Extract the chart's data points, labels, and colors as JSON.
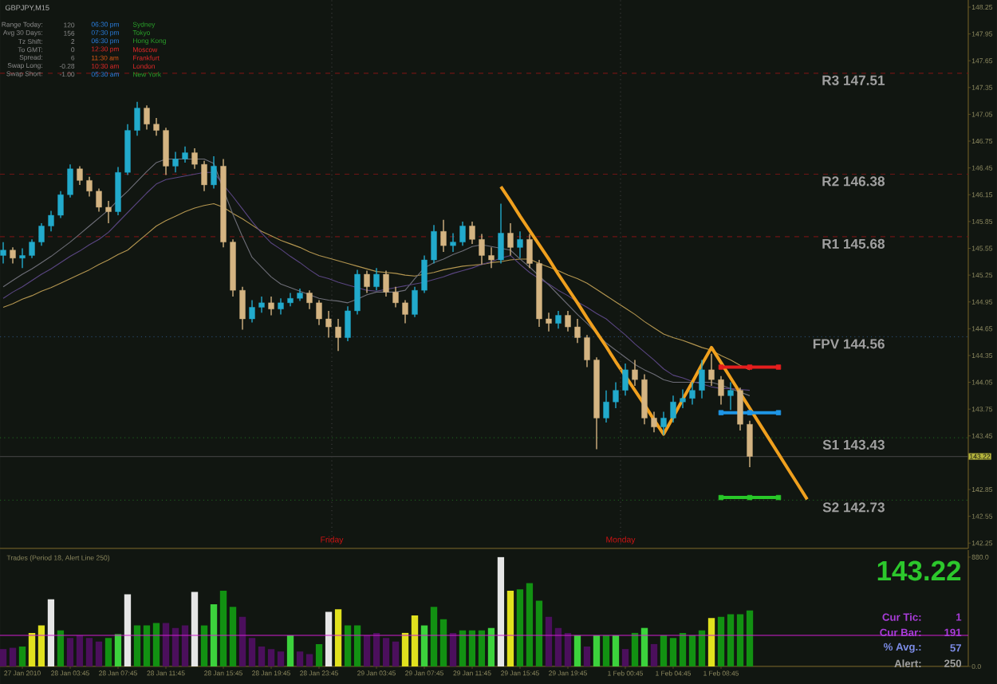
{
  "chart_data": [
    {
      "type": "candlestick",
      "title": "GBPJPY,M15",
      "annotations": [
        "Range Today:",
        "120",
        "06:30 pm",
        "Sydney",
        "Avg 30 Days:",
        "156",
        "07:30 pm",
        "Tokyo",
        "Tz Shift:",
        "2",
        "06:30 pm",
        "Hong Kong",
        "To GMT:",
        "0",
        "12:30 pm",
        "Moscow",
        "Spread:",
        "6",
        "11:30 am",
        "Frankfurt",
        "Swap Long:",
        "-0.28",
        "10:30 am",
        "London",
        "Swap Short:",
        "-1.00",
        "05:30 am",
        "New York",
        "Friday",
        "Monday"
      ],
      "categories": [
        null,
        null,
        null,
        null,
        null,
        null,
        null,
        null,
        null,
        null,
        null,
        null,
        null,
        null,
        null,
        null,
        null,
        null,
        null,
        null,
        null,
        null,
        null,
        null,
        null,
        null,
        null,
        null,
        null,
        null,
        null,
        null,
        null,
        null,
        null,
        null,
        null,
        null,
        null,
        null,
        null,
        null,
        null,
        null,
        null,
        null,
        null,
        null,
        null,
        null,
        null,
        null,
        null,
        null,
        null,
        null,
        null,
        null,
        null,
        null,
        null,
        null,
        null,
        null,
        null,
        null,
        null,
        null,
        null,
        null,
        null,
        null,
        null,
        null,
        null,
        null,
        null,
        null,
        null,
        null,
        null,
        null,
        null,
        null,
        null,
        null,
        null,
        null,
        null,
        null,
        null,
        null,
        null,
        null,
        null,
        null,
        null,
        null,
        null,
        null,
        null
      ],
      "ohlc": [
        [
          145.47,
          145.62,
          145.38,
          145.53
        ],
        [
          145.53,
          145.56,
          145.38,
          145.44
        ],
        [
          145.44,
          145.55,
          145.33,
          145.47
        ],
        [
          145.47,
          145.65,
          145.44,
          145.62
        ],
        [
          145.62,
          145.83,
          145.58,
          145.8
        ],
        [
          145.8,
          145.97,
          145.74,
          145.92
        ],
        [
          145.92,
          146.19,
          145.89,
          146.15
        ],
        [
          146.15,
          146.49,
          146.12,
          146.44
        ],
        [
          146.44,
          146.47,
          146.26,
          146.31
        ],
        [
          146.31,
          146.35,
          146.13,
          146.19
        ],
        [
          146.19,
          146.22,
          145.96,
          146.01
        ],
        [
          146.01,
          146.08,
          145.83,
          145.96
        ],
        [
          145.96,
          146.46,
          145.92,
          146.4
        ],
        [
          146.4,
          146.94,
          146.37,
          146.87
        ],
        [
          146.87,
          147.19,
          146.81,
          147.12
        ],
        [
          147.12,
          147.15,
          146.88,
          146.94
        ],
        [
          146.94,
          147.01,
          146.81,
          146.87
        ],
        [
          146.87,
          146.9,
          146.37,
          146.47
        ],
        [
          146.47,
          146.63,
          146.4,
          146.55
        ],
        [
          146.55,
          146.69,
          146.51,
          146.62
        ],
        [
          146.62,
          146.67,
          146.44,
          146.49
        ],
        [
          146.49,
          146.53,
          146.19,
          146.26
        ],
        [
          146.26,
          146.58,
          146.22,
          146.47
        ],
        [
          146.47,
          146.55,
          145.56,
          145.62
        ],
        [
          145.62,
          145.65,
          145.01,
          145.08
        ],
        [
          145.08,
          145.12,
          144.64,
          144.76
        ],
        [
          144.76,
          144.97,
          144.72,
          144.89
        ],
        [
          144.89,
          145.01,
          144.83,
          144.94
        ],
        [
          144.94,
          145.01,
          144.8,
          144.87
        ],
        [
          144.87,
          144.99,
          144.81,
          144.94
        ],
        [
          144.94,
          145.05,
          144.9,
          144.99
        ],
        [
          144.99,
          145.1,
          144.96,
          145.05
        ],
        [
          145.05,
          145.08,
          144.87,
          144.94
        ],
        [
          144.94,
          144.97,
          144.69,
          144.76
        ],
        [
          144.76,
          144.85,
          144.55,
          144.67
        ],
        [
          144.67,
          144.76,
          144.4,
          144.55
        ],
        [
          144.55,
          144.9,
          144.51,
          144.85
        ],
        [
          144.85,
          145.31,
          144.81,
          145.26
        ],
        [
          145.26,
          145.3,
          145.05,
          145.12
        ],
        [
          145.12,
          145.33,
          145.08,
          145.26
        ],
        [
          145.26,
          145.3,
          145.01,
          145.06
        ],
        [
          145.06,
          145.12,
          144.89,
          144.94
        ],
        [
          144.94,
          144.97,
          144.71,
          144.81
        ],
        [
          144.81,
          145.12,
          144.78,
          145.08
        ],
        [
          145.08,
          145.47,
          145.05,
          145.42
        ],
        [
          145.42,
          145.81,
          145.38,
          145.74
        ],
        [
          145.74,
          145.87,
          145.51,
          145.58
        ],
        [
          145.58,
          145.72,
          145.51,
          145.62
        ],
        [
          145.62,
          145.85,
          145.58,
          145.8
        ],
        [
          145.8,
          145.85,
          145.6,
          145.65
        ],
        [
          145.65,
          145.71,
          145.37,
          145.47
        ],
        [
          145.47,
          145.56,
          145.33,
          145.42
        ],
        [
          145.42,
          146.05,
          145.38,
          145.72
        ],
        [
          145.72,
          145.83,
          145.47,
          145.56
        ],
        [
          145.56,
          145.74,
          145.44,
          145.65
        ],
        [
          145.65,
          145.71,
          145.33,
          145.38
        ],
        [
          145.38,
          145.42,
          144.67,
          144.76
        ],
        [
          144.76,
          144.83,
          144.62,
          144.71
        ],
        [
          144.71,
          144.85,
          144.65,
          144.8
        ],
        [
          144.8,
          144.85,
          144.62,
          144.67
        ],
        [
          144.67,
          144.76,
          144.49,
          144.55
        ],
        [
          144.55,
          144.58,
          144.22,
          144.3
        ],
        [
          144.3,
          144.33,
          143.3,
          143.65
        ],
        [
          143.65,
          143.96,
          143.6,
          143.83
        ],
        [
          143.83,
          144.05,
          143.76,
          143.96
        ],
        [
          143.96,
          144.26,
          143.9,
          144.19
        ],
        [
          144.19,
          144.3,
          144.01,
          144.08
        ],
        [
          144.08,
          144.14,
          143.58,
          143.65
        ],
        [
          143.65,
          143.72,
          143.49,
          143.55
        ],
        [
          143.55,
          143.72,
          143.46,
          143.65
        ],
        [
          143.65,
          143.9,
          143.6,
          143.83
        ],
        [
          143.83,
          143.97,
          143.76,
          143.87
        ],
        [
          143.87,
          144.05,
          143.8,
          143.96
        ],
        [
          143.96,
          144.3,
          143.87,
          144.19
        ],
        [
          144.19,
          144.37,
          144.01,
          144.08
        ],
        [
          144.08,
          144.12,
          143.8,
          143.9
        ],
        [
          143.9,
          144.05,
          143.74,
          143.96
        ],
        [
          143.96,
          143.99,
          143.51,
          143.58
        ],
        [
          143.58,
          143.62,
          143.1,
          143.22
        ],
        null,
        null,
        null,
        null,
        null,
        null,
        null,
        null,
        null,
        null,
        null,
        null,
        null,
        null,
        null,
        null,
        null,
        null,
        null,
        null,
        null,
        null
      ],
      "colors": [
        "#22aacc",
        "#d4b482",
        "#22aacc",
        "#22aacc",
        "#22aacc",
        "#22aacc",
        "#22aacc",
        "#22aacc",
        "#d4b482",
        "#d4b482",
        "#d4b482",
        "#d4b482",
        "#22aacc",
        "#22aacc",
        "#22aacc",
        "#d4b482",
        "#d4b482",
        "#d4b482",
        "#22aacc",
        "#22aacc",
        "#d4b482",
        "#d4b482",
        "#22aacc",
        "#d4b482",
        "#d4b482",
        "#d4b482",
        "#22aacc",
        "#22aacc",
        "#d4b482",
        "#22aacc",
        "#22aacc",
        "#22aacc",
        "#d4b482",
        "#d4b482",
        "#d4b482",
        "#d4b482",
        "#22aacc",
        "#22aacc",
        "#d4b482",
        "#22aacc",
        "#d4b482",
        "#d4b482",
        "#d4b482",
        "#22aacc",
        "#22aacc",
        "#22aacc",
        "#d4b482",
        "#22aacc",
        "#22aacc",
        "#d4b482",
        "#d4b482",
        "#d4b482",
        "#22aacc",
        "#d4b482",
        "#22aacc",
        "#d4b482",
        "#d4b482",
        "#d4b482",
        "#22aacc",
        "#d4b482",
        "#d4b482",
        "#d4b482",
        "#d4b482",
        "#22aacc",
        "#22aacc",
        "#22aacc",
        "#d4b482",
        "#d4b482",
        "#d4b482",
        "#22aacc",
        "#22aacc",
        "#22aacc",
        "#22aacc",
        "#22aacc",
        "#d4b482",
        "#d4b482",
        "#22aacc",
        "#d4b482",
        "#d4b482",
        null,
        null,
        null,
        null,
        null,
        null,
        null,
        null,
        null,
        null,
        null,
        null,
        null,
        null,
        null,
        null,
        null,
        null,
        null,
        null,
        null,
        null
      ],
      "ylim": [
        142.19,
        148.33
      ],
      "yticks": [
        148.25,
        147.95,
        147.65,
        147.35,
        147.05,
        146.75,
        146.45,
        146.15,
        145.85,
        145.55,
        145.25,
        144.95,
        144.65,
        144.35,
        144.05,
        143.75,
        143.45,
        142.85,
        142.55,
        142.25
      ],
      "tick_labels": "y",
      "series": [
        {
          "type": "line",
          "color": "#b49650",
          "values": [
            144.89,
            144.93,
            144.98,
            145.02,
            145.07,
            145.11,
            145.16,
            145.21,
            145.26,
            145.31,
            145.37,
            145.42,
            145.48,
            145.53,
            145.62,
            145.71,
            145.8,
            145.86,
            145.91,
            145.96,
            146.0,
            146.03,
            146.05,
            146.01,
            145.94,
            145.88,
            145.81,
            145.74,
            145.69,
            145.64,
            145.6,
            145.56,
            145.51,
            145.47,
            145.44,
            145.41,
            145.38,
            145.35,
            145.32,
            145.29,
            145.28,
            145.27,
            145.25,
            145.24,
            145.26,
            145.28,
            145.31,
            145.33,
            145.35,
            145.36,
            145.37,
            145.39,
            145.4,
            145.42,
            145.43,
            145.43,
            145.38,
            145.34,
            145.3,
            145.25,
            145.21,
            145.16,
            145.09,
            145.02,
            144.95,
            144.88,
            144.81,
            144.73,
            144.66,
            144.59,
            144.55,
            144.52,
            144.48,
            144.44,
            144.41,
            144.35,
            144.3,
            144.24,
            144.19,
            null,
            null,
            null,
            null,
            null,
            null,
            null,
            null,
            null,
            null,
            null,
            null,
            null,
            null,
            null,
            null,
            null,
            null,
            null,
            null,
            null,
            null
          ]
        },
        {
          "type": "line",
          "color": "#6e6e78",
          "values": [
            145.12,
            145.19,
            145.26,
            145.32,
            145.39,
            145.46,
            145.54,
            145.62,
            145.71,
            145.8,
            145.89,
            145.98,
            146.09,
            146.19,
            146.3,
            146.41,
            146.51,
            146.55,
            146.55,
            146.55,
            146.55,
            146.55,
            146.5,
            146.21,
            145.93,
            145.68,
            145.45,
            145.34,
            145.23,
            145.15,
            145.11,
            145.07,
            145.03,
            144.99,
            144.97,
            144.96,
            144.94,
            144.98,
            145.03,
            145.06,
            145.06,
            145.06,
            145.08,
            145.21,
            145.33,
            145.39,
            145.43,
            145.48,
            145.52,
            145.57,
            145.59,
            145.57,
            145.55,
            145.53,
            145.43,
            145.34,
            145.24,
            145.14,
            145.03,
            144.92,
            144.81,
            144.71,
            144.6,
            144.49,
            144.41,
            144.33,
            144.25,
            144.19,
            144.14,
            144.08,
            144.05,
            144.05,
            144.05,
            144.05,
            144.05,
            144.02,
            143.98,
            143.94,
            143.9,
            null,
            null,
            null,
            null,
            null,
            null,
            null,
            null,
            null,
            null,
            null,
            null,
            null,
            null,
            null,
            null,
            null,
            null,
            null,
            null,
            null,
            null
          ]
        },
        {
          "type": "line",
          "color": "#5a4682",
          "values": [
            144.99,
            145.06,
            145.12,
            145.19,
            145.26,
            145.32,
            145.39,
            145.46,
            145.52,
            145.59,
            145.65,
            145.73,
            145.84,
            145.95,
            146.06,
            146.17,
            146.27,
            146.32,
            146.34,
            146.36,
            146.38,
            146.4,
            146.4,
            146.26,
            146.13,
            145.99,
            145.85,
            145.72,
            145.61,
            145.54,
            145.46,
            145.39,
            145.31,
            145.24,
            145.21,
            145.17,
            145.14,
            145.11,
            145.08,
            145.07,
            145.09,
            145.11,
            145.13,
            145.15,
            145.17,
            145.2,
            145.23,
            145.27,
            145.3,
            145.33,
            145.37,
            145.4,
            145.44,
            145.47,
            145.37,
            145.28,
            145.21,
            145.15,
            145.08,
            145.02,
            144.95,
            144.89,
            144.82,
            144.76,
            144.67,
            144.58,
            144.48,
            144.39,
            144.3,
            144.2,
            144.13,
            144.1,
            144.06,
            144.03,
            144.0,
            143.98,
            143.98,
            143.97,
            143.96,
            null,
            null,
            null,
            null,
            null,
            null,
            null,
            null,
            null,
            null,
            null,
            null,
            null,
            null,
            null,
            null,
            null,
            null,
            null,
            null,
            null,
            null
          ]
        },
        {
          "type": "line",
          "color": "#f0a01e",
          "values": [
            null,
            null,
            null,
            null,
            null,
            null,
            null,
            null,
            null,
            null,
            null,
            null,
            null,
            null,
            null,
            null,
            null,
            null,
            null,
            null,
            null,
            null,
            null,
            null,
            null,
            null,
            null,
            null,
            null,
            null,
            null,
            null,
            null,
            null,
            null,
            null,
            null,
            null,
            null,
            null,
            null,
            null,
            null,
            null,
            null,
            null,
            null,
            null,
            null,
            null,
            null,
            null,
            146.24,
            146.08,
            145.91,
            145.75,
            145.59,
            145.43,
            145.26,
            145.1,
            144.94,
            144.77,
            144.61,
            144.45,
            144.28,
            144.12,
            143.96,
            143.8,
            143.63,
            143.47,
            143.66,
            143.86,
            144.05,
            144.25,
            144.44,
            144.27,
            144.1,
            143.93,
            143.76,
            143.59,
            143.42,
            143.25,
            143.08,
            142.91,
            142.74,
            null,
            null,
            null,
            null,
            null,
            null,
            null,
            null,
            null,
            null,
            null,
            null,
            null,
            null,
            null,
            null
          ]
        },
        {
          "type": "line",
          "color": "#e61e1e",
          "values": [
            null,
            null,
            null,
            null,
            null,
            null,
            null,
            null,
            null,
            null,
            null,
            null,
            null,
            null,
            null,
            null,
            null,
            null,
            null,
            null,
            null,
            null,
            null,
            null,
            null,
            null,
            null,
            null,
            null,
            null,
            null,
            null,
            null,
            null,
            null,
            null,
            null,
            null,
            null,
            null,
            null,
            null,
            null,
            null,
            null,
            null,
            null,
            null,
            null,
            null,
            null,
            null,
            null,
            null,
            null,
            null,
            null,
            null,
            null,
            null,
            null,
            null,
            null,
            null,
            null,
            null,
            null,
            null,
            null,
            null,
            null,
            null,
            null,
            null,
            null,
            144.22,
            144.22,
            144.22,
            144.22,
            144.22,
            144.22,
            144.22,
            null,
            null,
            null,
            null,
            null,
            null,
            null,
            null,
            null,
            null,
            null,
            null,
            null,
            null,
            null,
            null,
            null,
            null,
            null
          ]
        },
        {
          "type": "line",
          "color": "#1e96e6",
          "values": [
            null,
            null,
            null,
            null,
            null,
            null,
            null,
            null,
            null,
            null,
            null,
            null,
            null,
            null,
            null,
            null,
            null,
            null,
            null,
            null,
            null,
            null,
            null,
            null,
            null,
            null,
            null,
            null,
            null,
            null,
            null,
            null,
            null,
            null,
            null,
            null,
            null,
            null,
            null,
            null,
            null,
            null,
            null,
            null,
            null,
            null,
            null,
            null,
            null,
            null,
            null,
            null,
            null,
            null,
            null,
            null,
            null,
            null,
            null,
            null,
            null,
            null,
            null,
            null,
            null,
            null,
            null,
            null,
            null,
            null,
            null,
            null,
            null,
            null,
            null,
            143.71,
            143.71,
            143.71,
            143.71,
            143.71,
            143.71,
            143.71,
            null,
            null,
            null,
            null,
            null,
            null,
            null,
            null,
            null,
            null,
            null,
            null,
            null,
            null,
            null,
            null,
            null,
            null,
            null
          ]
        },
        {
          "type": "line",
          "color": "#28c828",
          "values": [
            null,
            null,
            null,
            null,
            null,
            null,
            null,
            null,
            null,
            null,
            null,
            null,
            null,
            null,
            null,
            null,
            null,
            null,
            null,
            null,
            null,
            null,
            null,
            null,
            null,
            null,
            null,
            null,
            null,
            null,
            null,
            null,
            null,
            null,
            null,
            null,
            null,
            null,
            null,
            null,
            null,
            null,
            null,
            null,
            null,
            null,
            null,
            null,
            null,
            null,
            null,
            null,
            null,
            null,
            null,
            null,
            null,
            null,
            null,
            null,
            null,
            null,
            null,
            null,
            null,
            null,
            null,
            null,
            null,
            null,
            null,
            null,
            null,
            null,
            null,
            142.76,
            142.76,
            142.76,
            142.76,
            142.76,
            142.76,
            142.76,
            null,
            null,
            null,
            null,
            null,
            null,
            null,
            null,
            null,
            null,
            null,
            null,
            null,
            null,
            null,
            null,
            null,
            null,
            null
          ]
        },
        {
          "type": "scatter",
          "color": "#e61e1e",
          "marker": "square",
          "values": [
            null,
            null,
            null,
            null,
            null,
            null,
            null,
            null,
            null,
            null,
            null,
            null,
            null,
            null,
            null,
            null,
            null,
            null,
            null,
            null,
            null,
            null,
            null,
            null,
            null,
            null,
            null,
            null,
            null,
            null,
            null,
            null,
            null,
            null,
            null,
            null,
            null,
            null,
            null,
            null,
            null,
            null,
            null,
            null,
            null,
            null,
            null,
            null,
            null,
            null,
            null,
            null,
            null,
            null,
            null,
            null,
            null,
            null,
            null,
            null,
            null,
            null,
            null,
            null,
            null,
            null,
            null,
            null,
            null,
            null,
            null,
            null,
            null,
            null,
            null,
            144.22,
            null,
            null,
            144.22,
            null,
            null,
            144.22,
            null,
            null,
            null,
            null,
            null,
            null,
            null,
            null,
            null,
            null,
            null,
            null,
            null,
            null,
            null,
            null,
            null,
            null,
            null
          ]
        },
        {
          "type": "scatter",
          "color": "#1e96e6",
          "marker": "square",
          "values": [
            null,
            null,
            null,
            null,
            null,
            null,
            null,
            null,
            null,
            null,
            null,
            null,
            null,
            null,
            null,
            null,
            null,
            null,
            null,
            null,
            null,
            null,
            null,
            null,
            null,
            null,
            null,
            null,
            null,
            null,
            null,
            null,
            null,
            null,
            null,
            null,
            null,
            null,
            null,
            null,
            null,
            null,
            null,
            null,
            null,
            null,
            null,
            null,
            null,
            null,
            null,
            null,
            null,
            null,
            null,
            null,
            null,
            null,
            null,
            null,
            null,
            null,
            null,
            null,
            null,
            null,
            null,
            null,
            null,
            null,
            null,
            null,
            null,
            null,
            null,
            143.71,
            null,
            null,
            143.71,
            null,
            null,
            143.71,
            null,
            null,
            null,
            null,
            null,
            null,
            null,
            null,
            null,
            null,
            null,
            null,
            null,
            null,
            null,
            null,
            null,
            null,
            null
          ]
        },
        {
          "type": "scatter",
          "color": "#28c828",
          "marker": "square",
          "values": [
            null,
            null,
            null,
            null,
            null,
            null,
            null,
            null,
            null,
            null,
            null,
            null,
            null,
            null,
            null,
            null,
            null,
            null,
            null,
            null,
            null,
            null,
            null,
            null,
            null,
            null,
            null,
            null,
            null,
            null,
            null,
            null,
            null,
            null,
            null,
            null,
            null,
            null,
            null,
            null,
            null,
            null,
            null,
            null,
            null,
            null,
            null,
            null,
            null,
            null,
            null,
            null,
            null,
            null,
            null,
            null,
            null,
            null,
            null,
            null,
            null,
            null,
            null,
            null,
            null,
            null,
            null,
            null,
            null,
            null,
            null,
            null,
            null,
            null,
            null,
            142.76,
            null,
            null,
            142.76,
            null,
            null,
            142.76,
            null,
            null,
            null,
            null,
            null,
            null,
            null,
            null,
            null,
            null,
            null,
            null,
            null,
            null,
            null,
            null,
            null,
            null,
            null
          ]
        }
      ],
      "ref_lines": [
        {
          "axis": "y",
          "value": 147.51,
          "label": "R3 147.51",
          "color": "#6e1414",
          "line_style": "dashed"
        },
        {
          "axis": "y",
          "value": 146.38,
          "label": "R2 146.38",
          "color": "#6e1414",
          "line_style": "dashed"
        },
        {
          "axis": "y",
          "value": 145.68,
          "label": "R1 145.68",
          "color": "#6e1414",
          "line_style": "dashed"
        },
        {
          "axis": "y",
          "value": 144.56,
          "label": "FPV 144.56",
          "color": "#284a6e",
          "line_style": "dotted"
        },
        {
          "axis": "y",
          "value": 143.43,
          "label": "S1 143.43",
          "color": "#1e5a1e",
          "line_style": "dotted"
        },
        {
          "axis": "y",
          "value": 142.73,
          "label": "S2 142.73",
          "color": "#1e5a1e",
          "line_style": "dotted"
        },
        {
          "axis": "y",
          "value": 143.22,
          "label": "143.22",
          "color": "#3c3c3c",
          "line_style": "solid"
        }
      ]
    },
    {
      "type": "bar",
      "title": "Trades (Period 18, Alert Line 250)",
      "annotations": [
        "143.22",
        "Cur Tic:",
        "1",
        "Cur Bar:",
        "191",
        "% Avg.:",
        "57",
        "Alert:",
        "250"
      ],
      "categories": [
        null,
        null,
        "27 Jan 2010",
        null,
        null,
        null,
        null,
        "28 Jan 03:45",
        null,
        null,
        null,
        null,
        "28 Jan 07:45",
        null,
        null,
        null,
        null,
        "28 Jan 11:45",
        null,
        null,
        null,
        null,
        null,
        "28 Jan 15:45",
        null,
        null,
        null,
        null,
        "28 Jan 19:45",
        null,
        null,
        null,
        null,
        "28 Jan 23:45",
        null,
        null,
        null,
        null,
        null,
        "29 Jan 03:45",
        null,
        null,
        null,
        null,
        "29 Jan 07:45",
        null,
        null,
        null,
        null,
        "29 Jan 11:45",
        null,
        null,
        null,
        null,
        "29 Jan 15:45",
        null,
        null,
        null,
        null,
        "29 Jan 19:45",
        null,
        null,
        null,
        null,
        null,
        "1 Feb 00:45",
        null,
        null,
        null,
        null,
        "1 Feb 04:45",
        null,
        null,
        null,
        null,
        "1 Feb 08:45",
        null,
        null,
        null,
        null,
        null,
        null,
        null,
        null,
        null,
        null,
        null,
        null,
        null,
        null,
        null,
        null,
        null,
        null,
        null,
        null,
        null,
        null,
        null,
        null,
        null
      ],
      "values": [
        140,
        150,
        160,
        270,
        330,
        540,
        290,
        230,
        250,
        230,
        200,
        230,
        260,
        580,
        330,
        330,
        350,
        350,
        310,
        330,
        600,
        330,
        500,
        610,
        480,
        400,
        230,
        160,
        140,
        120,
        250,
        120,
        100,
        180,
        440,
        460,
        330,
        330,
        250,
        270,
        230,
        200,
        270,
        410,
        330,
        480,
        380,
        270,
        290,
        290,
        290,
        310,
        880,
        610,
        620,
        670,
        530,
        400,
        310,
        270,
        250,
        160,
        250,
        250,
        250,
        140,
        270,
        310,
        180,
        250,
        230,
        270,
        250,
        290,
        390,
        400,
        420,
        420,
        450,
        null,
        null,
        null,
        null,
        null,
        null,
        null,
        null,
        null,
        null,
        null,
        null,
        null,
        null,
        null,
        null,
        null,
        null,
        null,
        null,
        null,
        null
      ],
      "colors": [
        "#4b0f5c",
        "#4b0f5c",
        "#129112",
        "#e1e11e",
        "#e1e11e",
        "#e6e6e6",
        "#129112",
        "#4b0f5c",
        "#4b0f5c",
        "#4b0f5c",
        "#4b0f5c",
        "#129112",
        "#3cd23c",
        "#e6e6e6",
        "#129112",
        "#129112",
        "#129112",
        "#4b0f5c",
        "#4b0f5c",
        "#4b0f5c",
        "#e6e6e6",
        "#129112",
        "#3cd23c",
        "#129112",
        "#129112",
        "#4b0f5c",
        "#4b0f5c",
        "#4b0f5c",
        "#4b0f5c",
        "#4b0f5c",
        "#3cd23c",
        "#4b0f5c",
        "#4b0f5c",
        "#129112",
        "#e6e6e6",
        "#e1e11e",
        "#129112",
        "#129112",
        "#4b0f5c",
        "#4b0f5c",
        "#4b0f5c",
        "#4b0f5c",
        "#e1e11e",
        "#e1e11e",
        "#3cd23c",
        "#129112",
        "#129112",
        "#4b0f5c",
        "#129112",
        "#129112",
        "#129112",
        "#3cd23c",
        "#e6e6e6",
        "#e1e11e",
        "#129112",
        "#129112",
        "#129112",
        "#4b0f5c",
        "#4b0f5c",
        "#4b0f5c",
        "#3cd23c",
        "#4b0f5c",
        "#3cd23c",
        "#129112",
        "#3cd23c",
        "#4b0f5c",
        "#129112",
        "#3cd23c",
        "#4b0f5c",
        "#129112",
        "#129112",
        "#129112",
        "#129112",
        "#129112",
        "#e1e11e",
        "#129112",
        "#129112",
        "#129112",
        "#129112",
        null,
        null,
        null,
        null,
        null,
        null,
        null,
        null,
        null,
        null,
        null,
        null,
        null,
        null,
        null,
        null,
        null,
        null,
        null,
        null,
        null,
        null
      ],
      "ylim": [
        0,
        937
      ],
      "yticks": [
        {
          "value": 880,
          "label": "880.0"
        },
        {
          "value": 0,
          "label": "0.0"
        }
      ],
      "ref_lines": [
        {
          "axis": "y",
          "value": 250,
          "color": "#d21ed2",
          "line_style": "solid"
        }
      ]
    }
  ]
}
